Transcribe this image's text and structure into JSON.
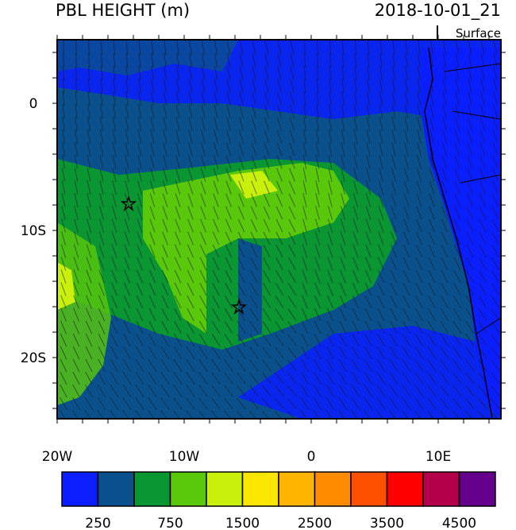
{
  "map": {
    "title": "PBL HEIGHT (m)",
    "time": "2018-10-01_21",
    "level": "Surface",
    "lat_labels": [
      "0",
      "10S",
      "20S"
    ],
    "lon_labels": [
      "20W",
      "10W",
      "0",
      "10E"
    ]
  },
  "colorbar": {
    "colors": [
      "#0a1eff",
      "#0a508c",
      "#0a9632",
      "#5ac80a",
      "#c8f00a",
      "#fae600",
      "#ffb400",
      "#ff8c00",
      "#ff5000",
      "#ff0000",
      "#b4004b",
      "#64008c"
    ],
    "labels": [
      250,
      750,
      1500,
      2500,
      3500,
      4500
    ]
  }
}
